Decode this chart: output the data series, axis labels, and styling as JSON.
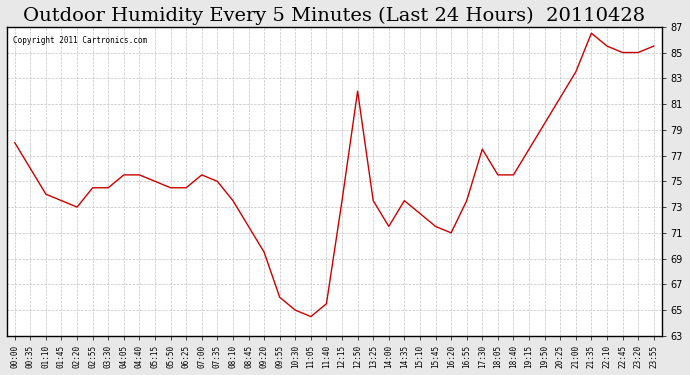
{
  "title": "Outdoor Humidity Every 5 Minutes (Last 24 Hours)  20110428",
  "copyright": "Copyright 2011 Cartronics.com",
  "ylabel_right": true,
  "ylim": [
    63.0,
    87.0
  ],
  "yticks": [
    63.0,
    65.0,
    67.0,
    69.0,
    71.0,
    73.0,
    75.0,
    77.0,
    79.0,
    81.0,
    83.0,
    85.0,
    87.0
  ],
  "line_color": "#cc0000",
  "bg_color": "#e8e8e8",
  "plot_bg": "#ffffff",
  "grid_color": "#aaaaaa",
  "title_fontsize": 14,
  "x_labels": [
    "00:00",
    "00:35",
    "01:10",
    "01:45",
    "02:20",
    "02:55",
    "03:30",
    "04:05",
    "04:40",
    "05:15",
    "05:50",
    "06:25",
    "07:00",
    "07:35",
    "08:10",
    "08:45",
    "09:20",
    "09:55",
    "10:30",
    "11:05",
    "11:40",
    "12:15",
    "12:50",
    "13:25",
    "14:00",
    "14:35",
    "15:10",
    "15:45",
    "16:20",
    "16:55",
    "17:30",
    "18:05",
    "18:40",
    "19:15",
    "19:50",
    "20:25",
    "21:00",
    "21:35",
    "22:10",
    "22:45",
    "23:20",
    "23:55"
  ],
  "humidity": [
    78.0,
    76.0,
    74.0,
    73.5,
    73.0,
    74.5,
    74.5,
    75.5,
    75.5,
    75.0,
    74.5,
    74.5,
    75.5,
    75.0,
    73.5,
    71.5,
    69.5,
    66.0,
    65.0,
    64.5,
    65.5,
    73.5,
    82.0,
    73.5,
    71.5,
    73.5,
    72.5,
    71.5,
    71.0,
    73.5,
    77.5,
    75.5,
    75.5,
    77.5,
    79.5,
    81.5,
    83.5,
    86.5,
    85.5,
    85.0,
    85.0,
    85.5
  ]
}
